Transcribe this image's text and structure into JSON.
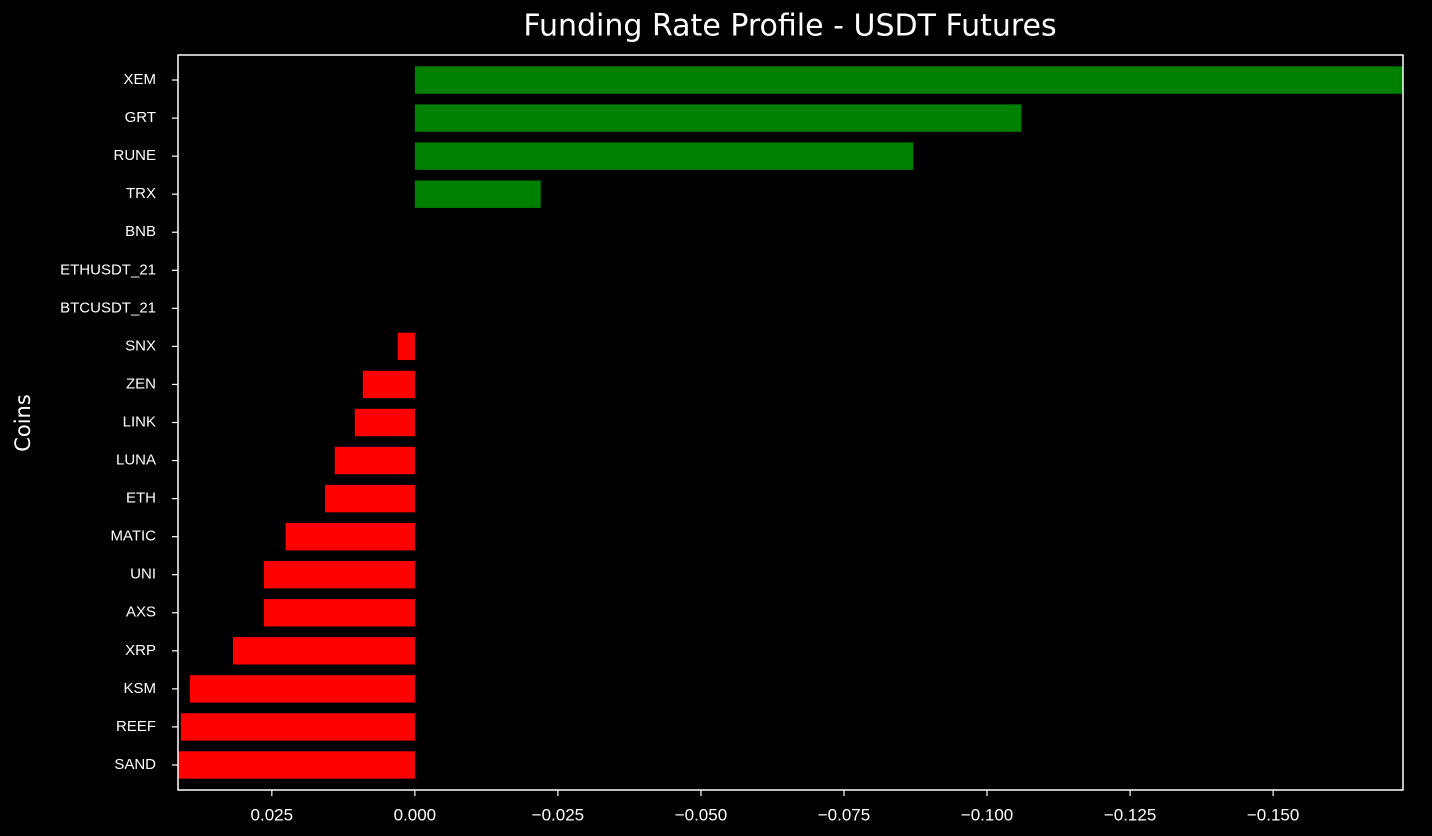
{
  "chart_data": {
    "type": "barh",
    "title": "Funding Rate Profile - USDT Futures",
    "ylabel": "Coins",
    "categories": [
      "XEM",
      "GRT",
      "RUNE",
      "TRX",
      "BNB",
      "ETHUSDT_21",
      "BTCUSDT_21",
      "SNX",
      "ZEN",
      "LINK",
      "LUNA",
      "ETH",
      "MATIC",
      "UNI",
      "AXS",
      "XRP",
      "KSM",
      "REEF",
      "SAND"
    ],
    "values": [
      -0.1727,
      -0.106,
      -0.0871,
      -0.022,
      0,
      0,
      0,
      0.003,
      0.0091,
      0.0105,
      0.014,
      0.0157,
      0.0226,
      0.0264,
      0.0264,
      0.0318,
      0.0393,
      0.0409,
      0.0414
    ],
    "color_positive": "#ff0000",
    "color_negative": "#008000",
    "xlim": [
      0.0414,
      -0.1727
    ],
    "xticks": [
      0.025,
      {
        "value": 0,
        "label": "0.000"
      },
      {
        "value": -0.025,
        "label": "−0.025"
      },
      {
        "value": -0.05,
        "label": "−0.050"
      },
      {
        "value": -0.075,
        "label": "−0.075"
      },
      {
        "value": -0.1,
        "label": "−0.100"
      },
      {
        "value": -0.125,
        "label": "−0.125"
      },
      {
        "value": -0.15,
        "label": "−0.150"
      }
    ],
    "grid": false
  }
}
